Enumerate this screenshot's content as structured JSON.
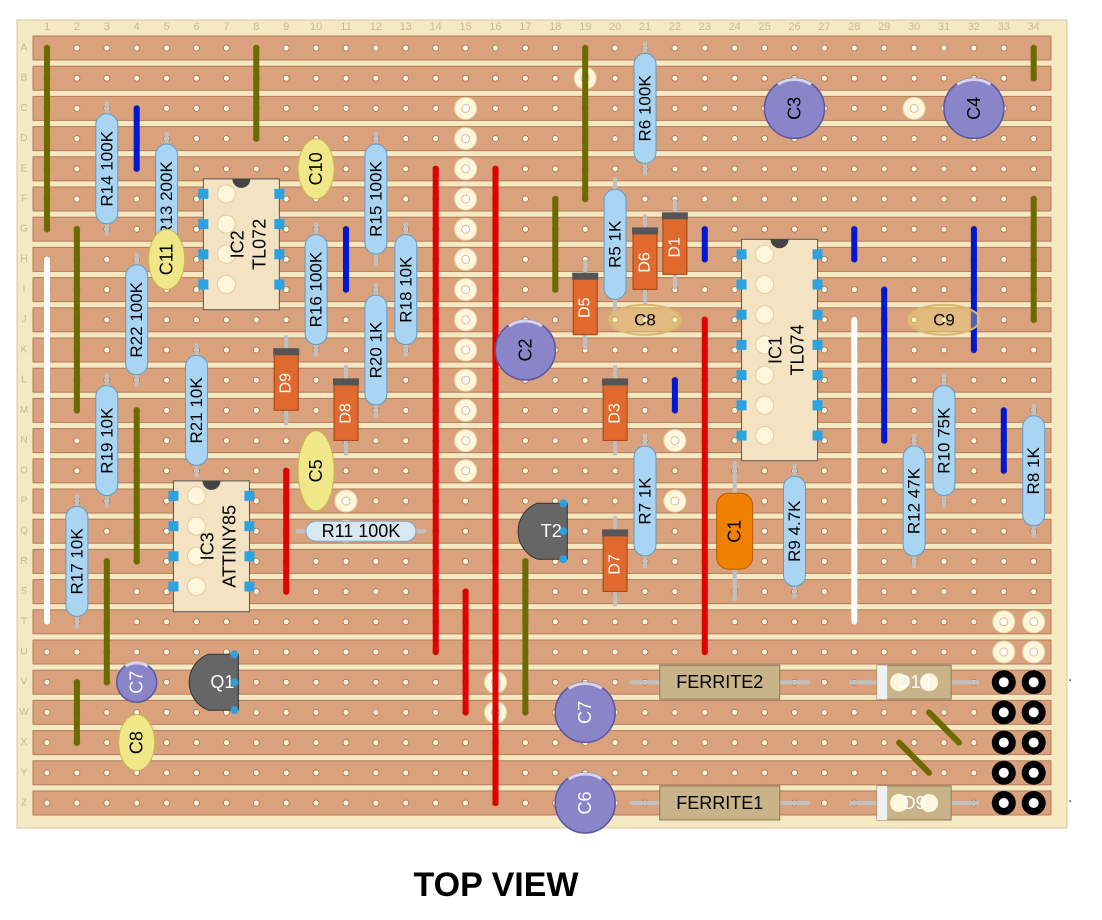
{
  "title": "TOP VIEW",
  "board": {
    "columns": [
      "1",
      "2",
      "3",
      "4",
      "5",
      "6",
      "7",
      "8",
      "9",
      "10",
      "11",
      "12",
      "13",
      "14",
      "15",
      "16",
      "17",
      "18",
      "19",
      "20",
      "21",
      "22",
      "23",
      "24",
      "25",
      "26",
      "27",
      "28",
      "29",
      "30",
      "31",
      "32",
      "33",
      "34"
    ],
    "rows": [
      "A",
      "B",
      "C",
      "D",
      "E",
      "F",
      "G",
      "H",
      "I",
      "J",
      "K",
      "L",
      "M",
      "N",
      "O",
      "P",
      "Q",
      "R",
      "S",
      "T",
      "U",
      "V",
      "W",
      "X",
      "Y",
      "Z"
    ]
  },
  "colors": {
    "board": "#f5e9c4",
    "strip": "#d9a27c",
    "strip_edge": "#b47c56",
    "hole": "#fff6dc",
    "red_wire": "#e00000",
    "blue_wire": "#0018d0",
    "olive_wire": "#6b6b00",
    "white_wire": "#ffffff",
    "resistor": "#a9d4f2",
    "diode": "#e06a2e",
    "film_cap": "#f0e888",
    "electrolytic": "#8a85c8",
    "tantalum": "#f08000",
    "ic": "#f3e3c2",
    "pin": "#2aa3e0",
    "transistor": "#666666",
    "ferrite": "#c9b48a"
  },
  "resistors": [
    {
      "label": "R14 100K",
      "col": 3,
      "row": 4
    },
    {
      "label": "R13 200K",
      "col": 5,
      "row": 5
    },
    {
      "label": "R22 100K",
      "col": 4,
      "row": 9
    },
    {
      "label": "R21 10K",
      "col": 6,
      "row": 12
    },
    {
      "label": "R19 10K",
      "col": 3,
      "row": 13
    },
    {
      "label": "R17 10K",
      "col": 2,
      "row": 17
    },
    {
      "label": "R15 100K",
      "col": 12,
      "row": 5
    },
    {
      "label": "R16 100K",
      "col": 10,
      "row": 8
    },
    {
      "label": "R18 10K",
      "col": 13,
      "row": 8
    },
    {
      "label": "R20 1K",
      "col": 12,
      "row": 10
    },
    {
      "label": "R11 100K",
      "col": 11.5,
      "row": 16,
      "horizontal": true
    },
    {
      "label": "R6 100K",
      "col": 21,
      "row": 2
    },
    {
      "label": "R5 1K",
      "col": 20,
      "row": 6.5
    },
    {
      "label": "R7 1K",
      "col": 21,
      "row": 15
    },
    {
      "label": "R9 4.7K",
      "col": 26,
      "row": 16
    },
    {
      "label": "R12 47K",
      "col": 30,
      "row": 15
    },
    {
      "label": "R10 75K",
      "col": 31,
      "row": 13
    },
    {
      "label": "R8 1K",
      "col": 34,
      "row": 14
    }
  ],
  "diodes": [
    {
      "label": "D9",
      "col": 9,
      "row": 11
    },
    {
      "label": "D8",
      "col": 11,
      "row": 12
    },
    {
      "label": "D5",
      "col": 19,
      "row": 8.5
    },
    {
      "label": "D6",
      "col": 21,
      "row": 7
    },
    {
      "label": "D1",
      "col": 22,
      "row": 6.5
    },
    {
      "label": "D3",
      "col": 20,
      "row": 12
    },
    {
      "label": "D7",
      "col": 20,
      "row": 17
    }
  ],
  "film_caps": [
    {
      "label": "C10",
      "col": 10,
      "row": 4
    },
    {
      "label": "C11",
      "col": 5,
      "row": 7
    },
    {
      "label": "C5",
      "col": 10,
      "row": 14
    }
  ],
  "oval_caps": [
    {
      "label": "C8",
      "col": 21,
      "row": 9
    },
    {
      "label": "C9",
      "col": 31,
      "row": 9
    },
    {
      "label": "C8",
      "col": 4,
      "row": 23
    }
  ],
  "electrolytics": [
    {
      "label": "C3",
      "col": 26,
      "row": 2
    },
    {
      "label": "C4",
      "col": 32,
      "row": 2
    },
    {
      "label": "C2",
      "col": 17,
      "row": 10
    },
    {
      "label": "C7",
      "col": 4,
      "row": 21
    },
    {
      "label": "C7",
      "col": 19,
      "row": 22
    },
    {
      "label": "C6",
      "col": 19,
      "row": 25
    }
  ],
  "tantalum": [
    {
      "label": "C1",
      "col": 24,
      "row": 16
    }
  ],
  "ics": [
    {
      "label1": "IC2",
      "label2": "TL072",
      "col": 7.5,
      "row": 6.5,
      "pins": 4
    },
    {
      "label1": "IC3",
      "label2": "ATTINY85",
      "col": 6.5,
      "row": 16.5,
      "pins": 4
    },
    {
      "label1": "IC1",
      "label2": "TL074",
      "col": 25.5,
      "row": 10,
      "pins": 7
    }
  ],
  "transistors": [
    {
      "label": "T2",
      "col": 18,
      "row": 16
    },
    {
      "label": "Q1",
      "col": 7,
      "row": 21
    }
  ],
  "ferrites": [
    {
      "label": "FERRITE2",
      "col": 23.5,
      "row": 21
    },
    {
      "label": "FERRITE1",
      "col": 23.5,
      "row": 25
    }
  ],
  "power_diodes": [
    {
      "label": "D10",
      "col": 30,
      "row": 21
    },
    {
      "label": "D9",
      "col": 30,
      "row": 25
    }
  ],
  "wires": {
    "red": [
      [
        14,
        4,
        14,
        20
      ],
      [
        16,
        4,
        16,
        25
      ],
      [
        15,
        18,
        15,
        22
      ],
      [
        16,
        20,
        16,
        25
      ],
      [
        9,
        14,
        9,
        18
      ],
      [
        23,
        9,
        23,
        20
      ]
    ],
    "blue": [
      [
        4,
        2,
        4,
        4
      ],
      [
        11,
        6,
        11,
        8
      ],
      [
        23,
        6,
        23,
        7
      ],
      [
        28,
        6,
        28,
        7
      ],
      [
        29,
        8,
        29,
        13
      ],
      [
        22,
        11,
        22,
        12
      ],
      [
        32,
        6,
        32,
        10
      ],
      [
        33,
        12,
        33,
        14
      ]
    ],
    "olive": [
      [
        1,
        0,
        1,
        6
      ],
      [
        2,
        6,
        2,
        12
      ],
      [
        4,
        12,
        4,
        17
      ],
      [
        8,
        0,
        8,
        3
      ],
      [
        19,
        0,
        19,
        5
      ],
      [
        18,
        5,
        18,
        8
      ],
      [
        3,
        17,
        3,
        21
      ],
      [
        2,
        21,
        2,
        23
      ],
      [
        17,
        17,
        17,
        22
      ],
      [
        34,
        0,
        34,
        1
      ],
      [
        34,
        5,
        34,
        9
      ]
    ],
    "white": [
      [
        1,
        7,
        1,
        19
      ],
      [
        28,
        9,
        28,
        19
      ],
      [
        17,
        19,
        17,
        21
      ]
    ]
  },
  "jumper_dots": [
    [
      15,
      2
    ],
    [
      15,
      3
    ],
    [
      15,
      4
    ],
    [
      15,
      5
    ],
    [
      15,
      6
    ],
    [
      15,
      7
    ],
    [
      15,
      8
    ],
    [
      15,
      9
    ],
    [
      15,
      10
    ],
    [
      15,
      11
    ],
    [
      15,
      12
    ],
    [
      15,
      13
    ],
    [
      15,
      14
    ],
    [
      19,
      1
    ],
    [
      30,
      2
    ],
    [
      22,
      13
    ],
    [
      22,
      15
    ],
    [
      11,
      15
    ],
    [
      11,
      16
    ],
    [
      16,
      21
    ],
    [
      16,
      22
    ],
    [
      33,
      19
    ],
    [
      34,
      19
    ],
    [
      33,
      20
    ],
    [
      34,
      20
    ]
  ],
  "headers": [
    [
      33,
      21
    ],
    [
      34,
      21
    ],
    [
      33,
      22
    ],
    [
      34,
      22
    ],
    [
      33,
      23
    ],
    [
      34,
      23
    ],
    [
      33,
      24
    ],
    [
      34,
      24
    ],
    [
      33,
      25
    ],
    [
      34,
      25
    ]
  ]
}
